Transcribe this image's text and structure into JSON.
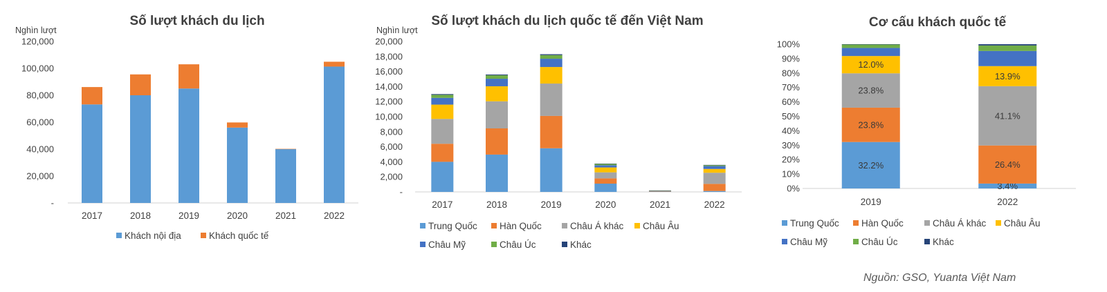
{
  "colors": {
    "domestic": "#5B9BD5",
    "international": "#ED7D31",
    "trung_quoc": "#5B9BD5",
    "han_quoc": "#ED7D31",
    "chau_a_khac": "#A5A5A5",
    "chau_au": "#FFC000",
    "chau_my": "#4472C4",
    "chau_uc": "#70AD47",
    "khac": "#264478",
    "axis": "#D9D9D9"
  },
  "source": "Nguồn: GSO, Yuanta Việt Nam",
  "chart_data": [
    {
      "type": "bar",
      "stacked": true,
      "title": "Số lượt khách du lịch",
      "unit_label": "Nghìn lượt",
      "categories": [
        "2017",
        "2018",
        "2019",
        "2020",
        "2021",
        "2022"
      ],
      "ylim": [
        0,
        120000
      ],
      "yticks": [
        "-",
        "20,000",
        "40,000",
        "60,000",
        "80,000",
        "100,000",
        "120,000"
      ],
      "series": [
        {
          "name": "Khách nội địa",
          "color_key": "domestic",
          "values": [
            73200,
            80000,
            85000,
            56000,
            40000,
            101300
          ]
        },
        {
          "name": "Khách quốc tế",
          "color_key": "international",
          "values": [
            12900,
            15500,
            18000,
            3800,
            200,
            3600
          ]
        }
      ],
      "legend": "bottom",
      "grid": false
    },
    {
      "type": "bar",
      "stacked": true,
      "title": "Số lượt khách du lịch quốc tế đến Việt Nam",
      "unit_label": "Nghìn lượt",
      "categories": [
        "2017",
        "2018",
        "2019",
        "2020",
        "2021",
        "2022"
      ],
      "ylim": [
        0,
        20000
      ],
      "yticks": [
        "-",
        "2,000",
        "4,000",
        "6,000",
        "8,000",
        "10,000",
        "12,000",
        "14,000",
        "16,000",
        "18,000",
        "20,000"
      ],
      "series": [
        {
          "name": "Trung Quốc",
          "color_key": "trung_quoc",
          "values": [
            4000,
            4960,
            5800,
            1100,
            60,
            120
          ]
        },
        {
          "name": "Hàn Quốc",
          "color_key": "han_quoc",
          "values": [
            2400,
            3480,
            4300,
            700,
            40,
            950
          ]
        },
        {
          "name": "Châu Á khác",
          "color_key": "chau_a_khac",
          "values": [
            3300,
            3600,
            4300,
            800,
            50,
            1480
          ]
        },
        {
          "name": "Châu Âu",
          "color_key": "chau_au",
          "values": [
            1900,
            2000,
            2200,
            650,
            20,
            500
          ]
        },
        {
          "name": "Châu Mỹ",
          "color_key": "chau_my",
          "values": [
            900,
            1000,
            1100,
            300,
            10,
            380
          ]
        },
        {
          "name": "Châu Úc",
          "color_key": "chau_uc",
          "values": [
            400,
            460,
            480,
            180,
            10,
            130
          ]
        },
        {
          "name": "Khác",
          "color_key": "khac",
          "values": [
            100,
            100,
            120,
            30,
            5,
            30
          ]
        }
      ],
      "legend": "bottom",
      "grid": false
    },
    {
      "type": "bar",
      "stacked": true,
      "percent": true,
      "title": "Cơ cấu khách quốc tế",
      "categories": [
        "2019",
        "2022"
      ],
      "ylim": [
        0,
        100
      ],
      "yticks": [
        "0%",
        "10%",
        "20%",
        "30%",
        "40%",
        "50%",
        "60%",
        "70%",
        "80%",
        "90%",
        "100%"
      ],
      "series": [
        {
          "name": "Trung Quốc",
          "color_key": "trung_quoc",
          "values": [
            32.2,
            3.4
          ],
          "labels": [
            "32.2%",
            "3.4%"
          ]
        },
        {
          "name": "Hàn Quốc",
          "color_key": "han_quoc",
          "values": [
            23.8,
            26.4
          ],
          "labels": [
            "23.8%",
            "26.4%"
          ]
        },
        {
          "name": "Châu Á khác",
          "color_key": "chau_a_khac",
          "values": [
            23.8,
            41.1
          ],
          "labels": [
            "23.8%",
            "41.1%"
          ]
        },
        {
          "name": "Châu Âu",
          "color_key": "chau_au",
          "values": [
            12.0,
            13.9
          ],
          "labels": [
            "12.0%",
            "13.9%"
          ]
        },
        {
          "name": "Châu Mỹ",
          "color_key": "chau_my",
          "values": [
            5.6,
            10.5
          ],
          "labels": [
            "",
            ""
          ]
        },
        {
          "name": "Châu Úc",
          "color_key": "chau_uc",
          "values": [
            2.4,
            3.8
          ],
          "labels": [
            "",
            ""
          ]
        },
        {
          "name": "Khác",
          "color_key": "khac",
          "values": [
            0.2,
            0.9
          ],
          "labels": [
            "",
            ""
          ]
        }
      ],
      "legend": "bottom",
      "grid": false
    }
  ]
}
